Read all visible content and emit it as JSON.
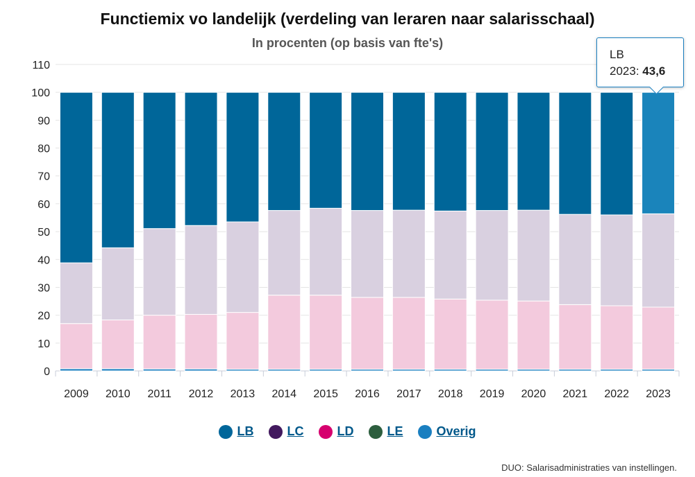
{
  "chart_data": {
    "type": "bar",
    "stacked": true,
    "title": "Functiemix vo landelijk (verdeling van leraren naar salarisschaal)",
    "subtitle": "In procenten (op basis van fte's)",
    "categories": [
      "2009",
      "2010",
      "2011",
      "2012",
      "2013",
      "2014",
      "2015",
      "2016",
      "2017",
      "2018",
      "2019",
      "2020",
      "2021",
      "2022",
      "2023"
    ],
    "ylim": [
      0,
      110
    ],
    "yticks": [
      0,
      10,
      20,
      30,
      40,
      50,
      60,
      70,
      80,
      90,
      100,
      110
    ],
    "grid": true,
    "legend_position": "bottom",
    "series": [
      {
        "name": "Overig",
        "color": "#1a7fc0",
        "values": [
          0.8,
          0.8,
          0.7,
          0.7,
          0.6,
          0.6,
          0.6,
          0.6,
          0.6,
          0.6,
          0.6,
          0.6,
          0.6,
          0.6,
          0.6
        ]
      },
      {
        "name": "LE",
        "color": "#2d5e3e",
        "values": [
          0,
          0,
          0,
          0,
          0,
          0,
          0,
          0,
          0,
          0,
          0,
          0,
          0,
          0,
          0
        ]
      },
      {
        "name": "LD",
        "color": "#f3cadd",
        "values": [
          16.2,
          17.5,
          19.3,
          19.6,
          20.4,
          26.6,
          26.6,
          25.8,
          25.8,
          25.2,
          24.8,
          24.5,
          23.2,
          22.8,
          22.3
        ]
      },
      {
        "name": "LC",
        "color": "#d9d0e0",
        "values": [
          21.8,
          25.9,
          31.1,
          31.9,
          32.5,
          30.4,
          31.2,
          31.2,
          31.3,
          31.6,
          32.2,
          32.6,
          32.4,
          32.6,
          33.5
        ]
      },
      {
        "name": "LB",
        "color": "#006699",
        "values": [
          61.2,
          55.8,
          48.9,
          47.8,
          46.5,
          42.4,
          41.6,
          42.4,
          42.3,
          42.6,
          42.4,
          42.3,
          43.8,
          44.0,
          43.6
        ]
      }
    ],
    "highlight": {
      "series": "LB",
      "category": "2023",
      "color": "#1a84bb"
    }
  },
  "tooltip": {
    "series_label": "LB",
    "year_label": "2023:",
    "value_label": "43,6"
  },
  "legend": [
    {
      "label": "LB",
      "color": "#00669a"
    },
    {
      "label": "LC",
      "color": "#42195e"
    },
    {
      "label": "LD",
      "color": "#d6006e"
    },
    {
      "label": "LE",
      "color": "#2d5e3e"
    },
    {
      "label": "Overig",
      "color": "#1a7fc0"
    }
  ],
  "source": "DUO: Salarisadministraties van instellingen."
}
